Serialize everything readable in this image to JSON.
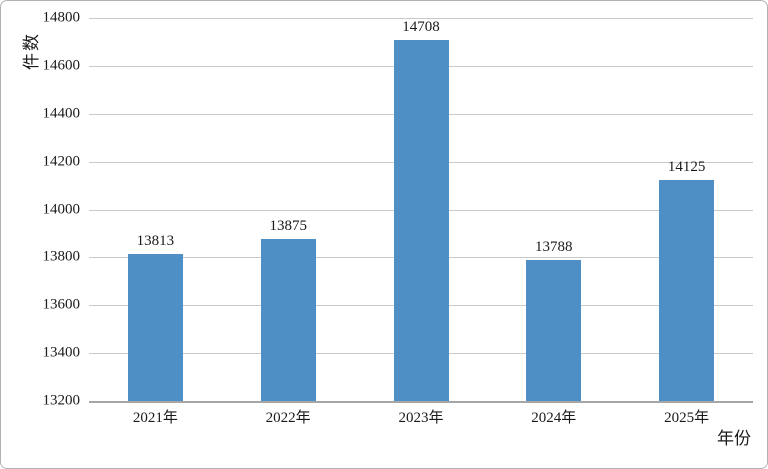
{
  "chart_data": {
    "type": "bar",
    "title": "",
    "categories": [
      "2021年",
      "2022年",
      "2023年",
      "2024年",
      "2025年"
    ],
    "values": [
      13813,
      13875,
      14708,
      13788,
      14125
    ],
    "data_labels": [
      "13813",
      "13875",
      "14708",
      "13788",
      "14125"
    ],
    "xlabel": "年份",
    "ylabel": "件数",
    "ylim": [
      13200,
      14800
    ],
    "yticks": [
      13200,
      13400,
      13600,
      13800,
      14000,
      14200,
      14400,
      14600,
      14800
    ],
    "grid": true,
    "legend": false,
    "bar_color": "#4e90c5",
    "gridline_color": "#c9c9c9",
    "axis_line_color": "#a6a6a6",
    "text_color": "#1a1a1a"
  }
}
